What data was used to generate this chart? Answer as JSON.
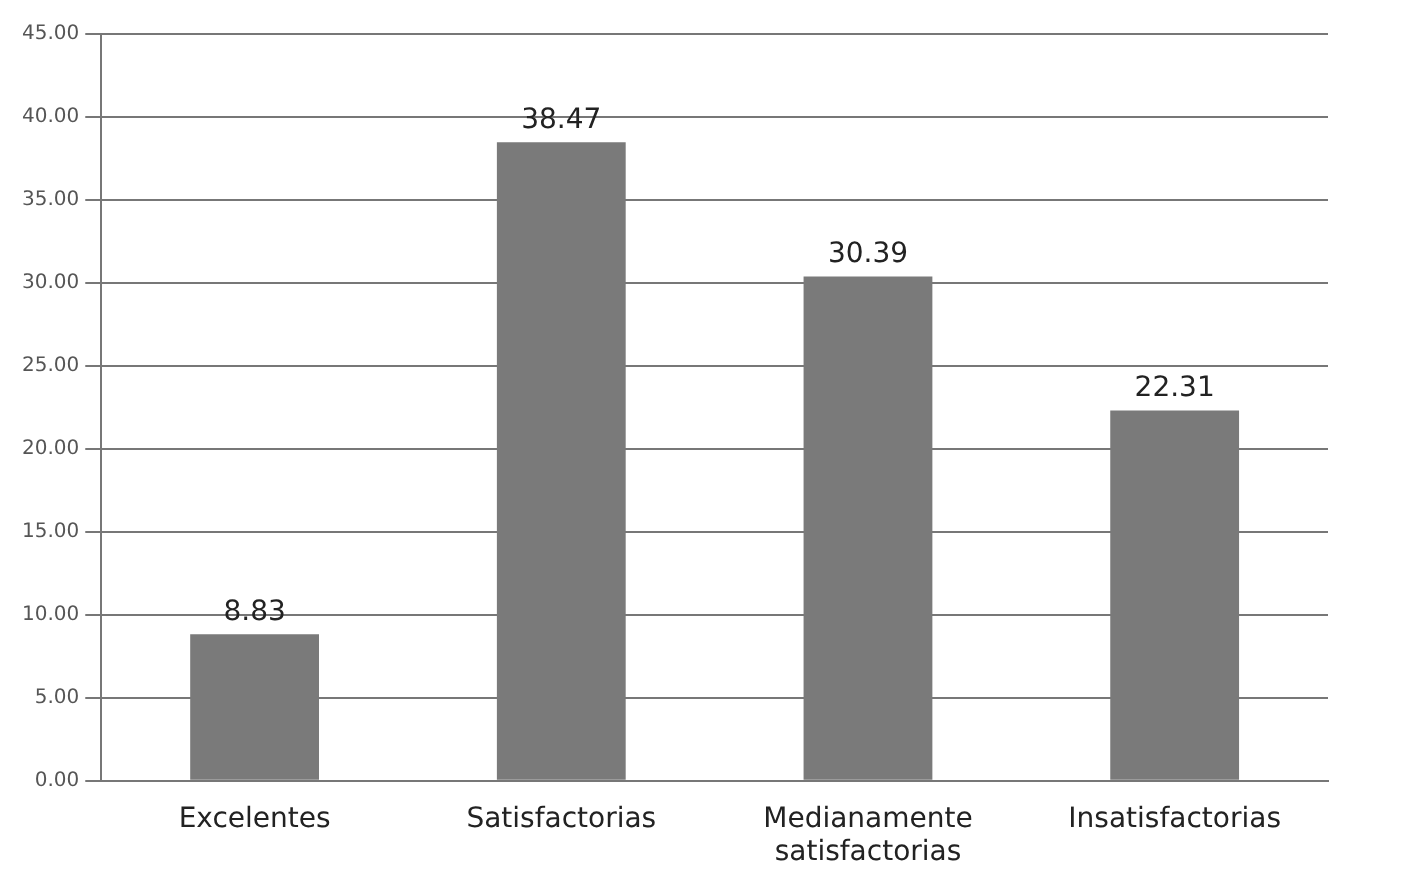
{
  "chart_data": {
    "type": "bar",
    "categories": [
      "Excelentes",
      "Satisfactorias",
      "Medianamente satisfactorias",
      "Insatisfactorias"
    ],
    "values": [
      8.83,
      38.47,
      30.39,
      22.31
    ],
    "color": "#7a7a7a",
    "ylim": [
      0,
      45
    ],
    "yticks": [
      {
        "value": 0,
        "label": "0.00"
      },
      {
        "value": 5,
        "label": "5.00"
      },
      {
        "value": 10,
        "label": "10.00"
      },
      {
        "value": 15,
        "label": "15.00"
      },
      {
        "value": 20,
        "label": "20.00"
      },
      {
        "value": 25,
        "label": "25.00"
      },
      {
        "value": 30,
        "label": "30.00"
      },
      {
        "value": 35,
        "label": "35.00"
      },
      {
        "value": 40,
        "label": "40.00"
      },
      {
        "value": 45,
        "label": "45.00"
      }
    ],
    "grid": "y",
    "data_labels": true
  }
}
